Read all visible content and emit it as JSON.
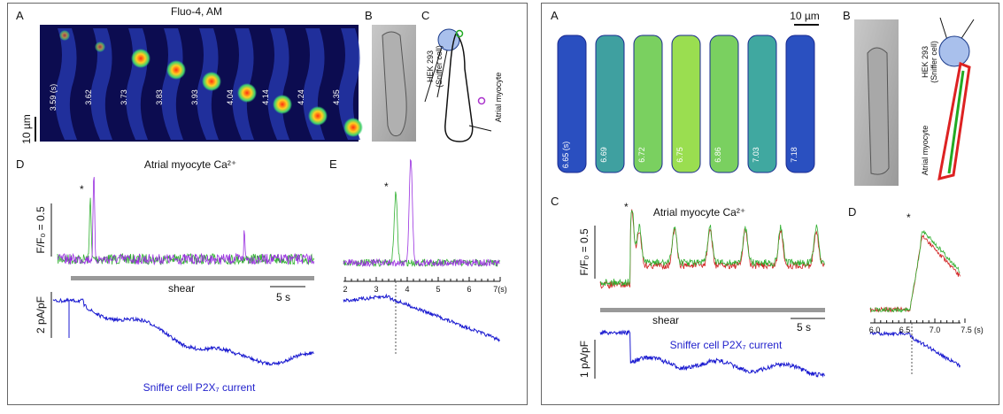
{
  "left_figure": {
    "panel_a": {
      "label": "A",
      "title": "Fluo-4, AM",
      "scale": "10 µm",
      "timestamps": [
        "3.59 (s)",
        "3.62",
        "3.73",
        "3.83",
        "3.93",
        "4.04",
        "4.14",
        "4.24",
        "4.35"
      ]
    },
    "panel_b": {
      "label": "B"
    },
    "panel_c": {
      "label": "C",
      "sniffer": "HEK 293",
      "sniffer_note": "(Sniffer cell)",
      "myocyte": "Atrial myocyte"
    },
    "panel_d": {
      "label": "D",
      "title": "Atrial myocyte Ca²⁺",
      "star": "*",
      "ratio_scale": "F/F₀ = 0.5",
      "shear": "shear",
      "time_scale": "5 s",
      "current_scale": "2 pA/pF",
      "current_label": "Sniffer cell P2X₇ current"
    },
    "panel_e": {
      "label": "E",
      "star": "*",
      "ticks": [
        "2",
        "3",
        "4",
        "5",
        "6",
        "7(s)"
      ]
    }
  },
  "right_figure": {
    "panel_a": {
      "label": "A",
      "scale": "10 µm",
      "timestamps": [
        "6.65 (s)",
        "6.69",
        "6.72",
        "6.75",
        "6.86",
        "7.03",
        "7.18"
      ]
    },
    "panel_b": {
      "label": "B",
      "sniffer": "HEK 293",
      "sniffer_note": "(Sniffer cell)",
      "myocyte": "Atrial myocyte"
    },
    "panel_c": {
      "label": "C",
      "star": "*",
      "title": "Atrial myocyte Ca²⁺",
      "ratio_scale": "F/F₀ = 0.5",
      "shear": "shear",
      "time_scale": "5 s",
      "current_scale": "1 pA/pF",
      "current_label": "Sniffer cell P2X₇ current"
    },
    "panel_d": {
      "label": "D",
      "star": "*",
      "ticks": [
        "6.0",
        "6.5",
        "7.0",
        "7.5 (s)"
      ]
    }
  }
}
